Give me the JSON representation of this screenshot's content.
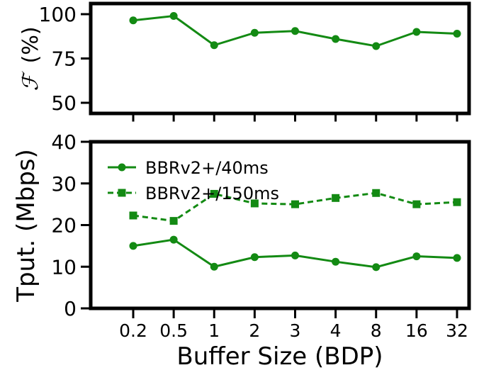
{
  "colors": {
    "series": "#138a13",
    "axes": "#000000",
    "background": "#ffffff"
  },
  "chart_data": [
    {
      "type": "line",
      "categories": [
        "0.2",
        "0.5",
        "1",
        "2",
        "3",
        "4",
        "8",
        "16",
        "32"
      ],
      "ylabel_symbol": "ℱ",
      "ylabel_text": "(%)",
      "ylim": [
        45,
        105
      ],
      "yticks": [
        50,
        75,
        100
      ],
      "grid": false,
      "series": [
        {
          "values": [
            96.5,
            99,
            82.5,
            89.5,
            90.5,
            86,
            82,
            90,
            89
          ],
          "style": "solid",
          "marker": "circle"
        }
      ]
    },
    {
      "type": "line",
      "categories": [
        "0.2",
        "0.5",
        "1",
        "2",
        "3",
        "4",
        "8",
        "16",
        "32"
      ],
      "xlabel": "Buffer Size (BDP)",
      "ylabel": "Tput. (Mbps)",
      "ylim": [
        0,
        40
      ],
      "yticks": [
        0,
        10,
        20,
        30,
        40
      ],
      "grid": false,
      "legend_position": "upper-left",
      "series": [
        {
          "name": "BBRv2+/40ms",
          "values": [
            15,
            16.5,
            10,
            12.3,
            12.7,
            11.2,
            9.9,
            12.5,
            12.1
          ],
          "style": "solid",
          "marker": "circle"
        },
        {
          "name": "BBRv2+/150ms",
          "values": [
            22.3,
            21,
            27.5,
            25.2,
            25,
            26.5,
            27.7,
            25,
            25.5
          ],
          "style": "dashed",
          "marker": "square"
        }
      ]
    }
  ]
}
